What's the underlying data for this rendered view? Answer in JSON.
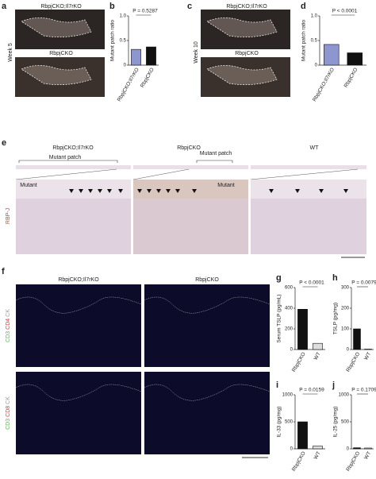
{
  "figure": {
    "a": {
      "label": "a",
      "week": "Week 5",
      "images": [
        "RbpjCKO;Il7rKO",
        "RbpjCKO"
      ]
    },
    "c": {
      "label": "c",
      "week": "Week 10",
      "images": [
        "RbpjCKO;Il7rKO",
        "RbpjCKO"
      ]
    },
    "e": {
      "label": "e",
      "columns": [
        "RbpjCKO;Il7rKO",
        "RbpjCKO",
        "WT"
      ],
      "patch_labels": [
        "Mutant patch",
        "Mutant patch"
      ],
      "mutant_labels": [
        "Mutant",
        "Mutant"
      ],
      "stain": "RBP-J"
    },
    "f": {
      "label": "f",
      "columns": [
        "RbpjCKO;Il7rKO",
        "RbpjCKO"
      ],
      "rows": [
        [
          {
            "text": "CD3",
            "color": "#33cc33"
          },
          {
            "text": "CD4",
            "color": "#e33333"
          },
          {
            "text": "CK",
            "color": "#999999"
          }
        ],
        [
          {
            "text": "CD3",
            "color": "#33cc33"
          },
          {
            "text": "CD8",
            "color": "#e33333"
          },
          {
            "text": "CK",
            "color": "#999999"
          }
        ]
      ]
    }
  },
  "chart_data": [
    {
      "type": "bar",
      "panel_label": "b",
      "y_label": "Mutant patch ratio",
      "annotation": "P = 0.5287",
      "categories": [
        "RbpjCKO;Il7rKO",
        "RbpjCKO"
      ],
      "values": [
        0.32,
        0.37
      ],
      "colors": [
        "#8e96d0",
        "#111111"
      ],
      "ylim": [
        0,
        1
      ],
      "yticks": [
        0,
        0.5,
        {
          "value": 1,
          "label": "1.0"
        }
      ]
    },
    {
      "type": "bar",
      "panel_label": "d",
      "y_label": "Mutant patch ratio",
      "annotation": "P < 0.0001",
      "categories": [
        "RbpjCKO;Il7rKO",
        "RbpjCKO"
      ],
      "values": [
        0.42,
        0.25
      ],
      "colors": [
        "#8e96d0",
        "#111111"
      ],
      "ylim": [
        0,
        1
      ],
      "yticks": [
        0,
        0.5,
        {
          "value": 1,
          "label": "1.0"
        }
      ]
    },
    {
      "type": "bar",
      "panel_label": "g",
      "y_label": "Serum TSLP (pg/mL)",
      "annotation": "P < 0.0001",
      "categories": [
        "RbpjCKO",
        "WT"
      ],
      "values": [
        390,
        60
      ],
      "colors": [
        "#111111",
        "#dddddd"
      ],
      "ylim": [
        0,
        600
      ],
      "yticks": [
        0,
        200,
        400,
        600
      ]
    },
    {
      "type": "bar",
      "panel_label": "h",
      "y_label": "TSLP (pg/mg)",
      "annotation": "P = 0.0079",
      "categories": [
        "RbpjCKO",
        "WT"
      ],
      "values": [
        100,
        2
      ],
      "colors": [
        "#111111",
        "#dddddd"
      ],
      "ylim": [
        0,
        300
      ],
      "yticks": [
        0,
        100,
        200,
        300
      ]
    },
    {
      "type": "bar",
      "panel_label": "i",
      "y_label": "IL-33 (pg/mg)",
      "annotation": "P = 0.0159",
      "categories": [
        "RbpjCKO",
        "WT"
      ],
      "values": [
        500,
        50
      ],
      "colors": [
        "#111111",
        "#dddddd"
      ],
      "ylim": [
        0,
        1000
      ],
      "yticks": [
        0,
        500,
        1000
      ]
    },
    {
      "type": "bar",
      "panel_label": "j",
      "y_label": "IL-25 (pg/mg)",
      "annotation": "P = 0.1709",
      "categories": [
        "RbpjCKO",
        "WT"
      ],
      "values": [
        20,
        15
      ],
      "colors": [
        "#111111",
        "#dddddd"
      ],
      "ylim": [
        0,
        1000
      ],
      "yticks": [
        0,
        500,
        1000
      ]
    }
  ]
}
